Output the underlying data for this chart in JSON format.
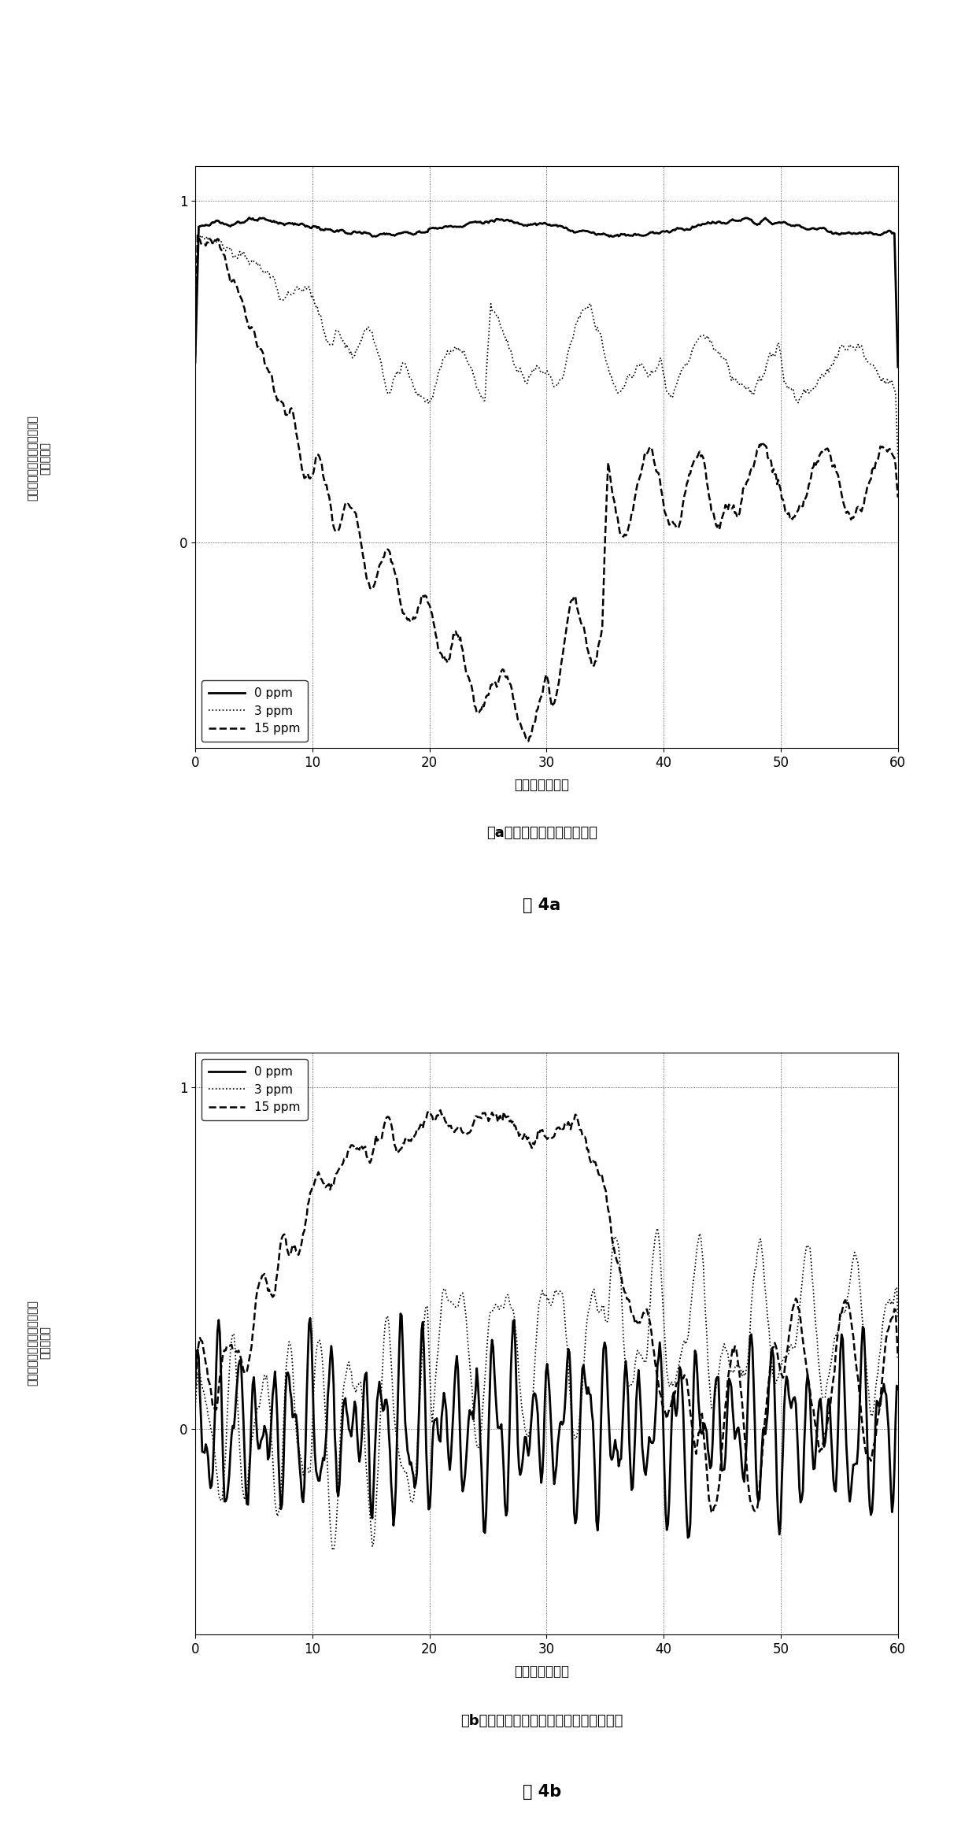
{
  "fig_width": 12.4,
  "fig_height": 23.46,
  "background_color": "#ffffff",
  "subplot_a": {
    "title": "（a）最佳化码片时程的观察",
    "xlabel": "时间（时槽数）",
    "ylabel_chars": [
      "初",
      "级",
      "同",
      "步",
      "码",
      "匹",
      "配",
      "滤",
      "波",
      "器",
      "的",
      "输",
      "出",
      "（",
      "归",
      "一",
      "化",
      "）"
    ],
    "xlim": [
      0,
      60
    ],
    "ylim": [
      -0.6,
      1.1
    ],
    "yticks": [
      0.0,
      1.0
    ],
    "xticks": [
      0,
      10,
      20,
      30,
      40,
      50,
      60
    ],
    "legend_labels": [
      "0 ppm",
      "3 ppm",
      "15 ppm"
    ],
    "figure_label": "图 4a"
  },
  "subplot_b": {
    "title": "（b）距离理想取样点为一个码片处的观察",
    "xlabel": "时间（时槽数）",
    "ylabel_chars": [
      "初",
      "级",
      "同",
      "步",
      "码",
      "匹",
      "配",
      "滤",
      "波",
      "器",
      "的",
      "输",
      "出",
      "（",
      "归",
      "一",
      "化",
      "）"
    ],
    "xlim": [
      0,
      60
    ],
    "ylim": [
      -0.6,
      1.1
    ],
    "yticks": [
      0.0,
      1.0
    ],
    "xticks": [
      0,
      10,
      20,
      30,
      40,
      50,
      60
    ],
    "legend_labels": [
      "0 ppm",
      "3 ppm",
      "15 ppm"
    ],
    "figure_label": "图 4b"
  }
}
